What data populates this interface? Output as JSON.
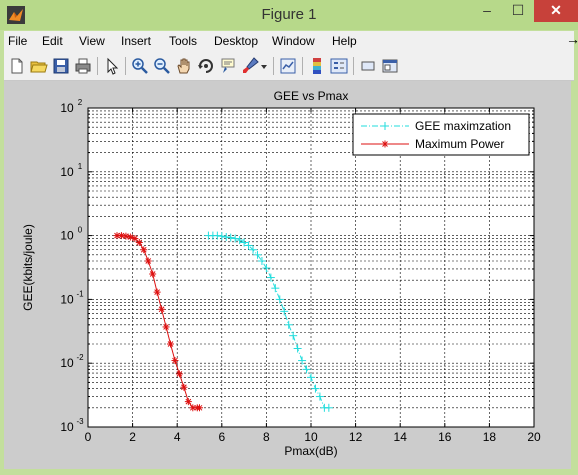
{
  "window": {
    "title": "Figure 1",
    "minimize_glyph": "–",
    "maximize_glyph": "☐",
    "close_glyph": "✕"
  },
  "menu": [
    "File",
    "Edit",
    "View",
    "Insert",
    "Tools",
    "Desktop",
    "Window",
    "Help"
  ],
  "toolbar_icons": [
    "new-figure-icon",
    "open-file-icon",
    "save-icon",
    "print-icon",
    "pointer-icon",
    "zoom-in-icon",
    "zoom-out-icon",
    "pan-icon",
    "rotate-3d-icon",
    "data-cursor-icon",
    "brush-icon",
    "brush-dropdown-icon",
    "link-plot-icon",
    "colorbar-icon",
    "legend-icon",
    "hide-plot-tools-icon",
    "show-plot-tools-icon"
  ],
  "colors": {
    "cyan_series": "#22dddd",
    "red_series": "#dd1111",
    "window_frame": "#c3df9c",
    "figure_bg": "#cccccc"
  },
  "chart_data": {
    "type": "line",
    "title": "GEE vs Pmax",
    "xlabel": "Pmax(dB)",
    "ylabel": "GEE(kbits/joule)",
    "xlim": [
      0,
      20
    ],
    "ylim": [
      0.001,
      100
    ],
    "y_scale": "log",
    "grid": true,
    "legend_position": "top-right",
    "x_ticks": [
      "0",
      "2",
      "4",
      "6",
      "8",
      "10",
      "12",
      "14",
      "16",
      "18",
      "20"
    ],
    "y_ticks": [
      {
        "base": "10",
        "exp": "2"
      },
      {
        "base": "10",
        "exp": "1"
      },
      {
        "base": "10",
        "exp": "0"
      },
      {
        "base": "10",
        "exp": "-1"
      },
      {
        "base": "10",
        "exp": "-2"
      },
      {
        "base": "10",
        "exp": "-3"
      }
    ],
    "series": [
      {
        "name": "GEE maximzation",
        "color": "#22dddd",
        "line_style": "dashdot",
        "marker": "+",
        "x": [
          5.4,
          5.6,
          5.8,
          6.0,
          6.2,
          6.4,
          6.6,
          6.8,
          7.0,
          7.2,
          7.4,
          7.6,
          7.8,
          8.0,
          8.2,
          8.4,
          8.6,
          8.8,
          9.0,
          9.2,
          9.4,
          9.6,
          9.8,
          10.0,
          10.2,
          10.4,
          10.6,
          10.8
        ],
        "y": [
          1.0,
          1.0,
          1.0,
          0.98,
          0.95,
          0.93,
          0.9,
          0.85,
          0.78,
          0.7,
          0.6,
          0.5,
          0.4,
          0.31,
          0.22,
          0.15,
          0.1,
          0.065,
          0.04,
          0.027,
          0.017,
          0.011,
          0.008,
          0.006,
          0.004,
          0.003,
          0.002,
          0.002
        ]
      },
      {
        "name": "Maximum Power",
        "color": "#dd1111",
        "line_style": "solid",
        "marker": "*",
        "x": [
          1.3,
          1.5,
          1.7,
          1.9,
          2.1,
          2.3,
          2.5,
          2.7,
          2.9,
          3.1,
          3.3,
          3.5,
          3.7,
          3.9,
          4.1,
          4.3,
          4.5,
          4.7,
          4.9,
          5.0
        ],
        "y": [
          1.0,
          1.0,
          0.98,
          0.95,
          0.9,
          0.78,
          0.6,
          0.4,
          0.25,
          0.13,
          0.07,
          0.037,
          0.02,
          0.011,
          0.0068,
          0.0042,
          0.0025,
          0.002,
          0.002,
          0.002
        ]
      }
    ]
  }
}
